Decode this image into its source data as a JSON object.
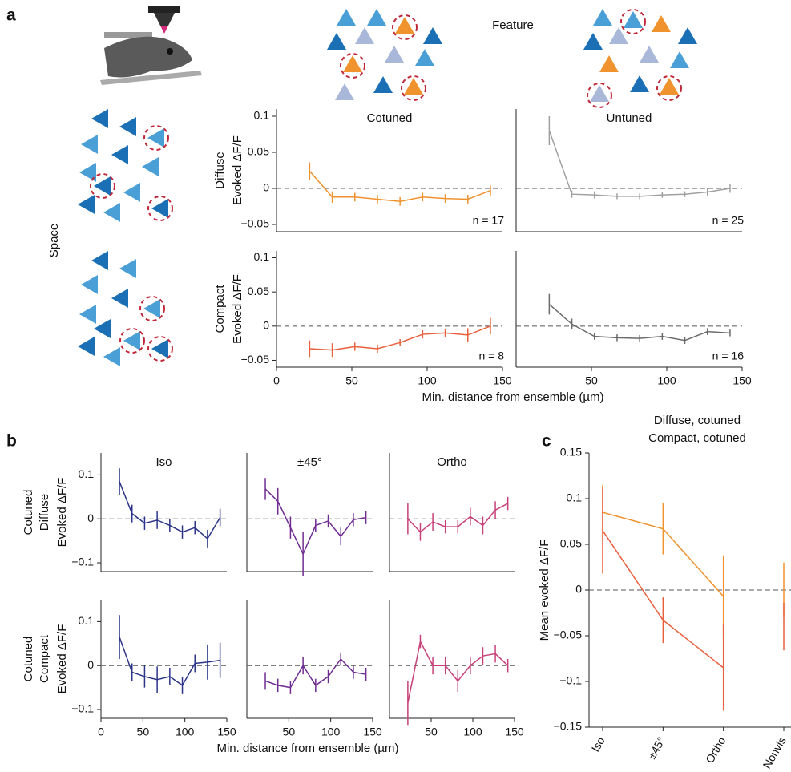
{
  "figure": {
    "panel_labels": [
      "a",
      "b",
      "c"
    ],
    "feature": "Feature",
    "space": "Space"
  },
  "chart_data": [
    {
      "type": "line",
      "title": "Cotuned",
      "title_color": "#f0922e",
      "row_label": "Diffuse",
      "row_label_color": "#a0a0a0",
      "ylabel": "Evoked ΔF/F",
      "annotation": "n = 17",
      "x": [
        22,
        37,
        52,
        67,
        82,
        97,
        112,
        127,
        142
      ],
      "series": [
        {
          "color": "#f0922e",
          "values": [
            0.024,
            -0.012,
            -0.012,
            -0.015,
            -0.018,
            -0.012,
            -0.014,
            -0.015,
            -0.003
          ],
          "errors": [
            0.012,
            0.008,
            0.006,
            0.006,
            0.006,
            0.006,
            0.006,
            0.006,
            0.007
          ]
        }
      ],
      "xlim": [
        0,
        150
      ],
      "ylim": [
        -0.06,
        0.11
      ],
      "yticks": [
        0.1,
        0.05,
        0,
        {
          "value": -0.05,
          "label": "−0.05"
        }
      ],
      "baseline": 0
    },
    {
      "type": "line",
      "title": "Untuned",
      "title_color": "#a0a0a0",
      "annotation": "n = 25",
      "x": [
        22,
        37,
        52,
        67,
        82,
        97,
        112,
        127,
        142
      ],
      "series": [
        {
          "color": "#a0a0a0",
          "values": [
            0.08,
            -0.008,
            -0.009,
            -0.011,
            -0.011,
            -0.009,
            -0.008,
            -0.005,
            0.0
          ],
          "errors": [
            0.02,
            0.005,
            0.005,
            0.004,
            0.004,
            0.004,
            0.004,
            0.005,
            0.006
          ]
        }
      ],
      "xlim": [
        0,
        150
      ],
      "ylim": [
        -0.06,
        0.11
      ],
      "baseline": 0
    },
    {
      "type": "line",
      "row_label": "Compact",
      "row_label_color": "#a0a0a0",
      "ylabel": "Evoked ΔF/F",
      "annotation": "n = 8",
      "x": [
        22,
        37,
        52,
        67,
        82,
        97,
        112,
        127,
        142
      ],
      "series": [
        {
          "color": "#e8603c",
          "values": [
            -0.033,
            -0.035,
            -0.03,
            -0.033,
            -0.024,
            -0.012,
            -0.01,
            -0.013,
            0.0
          ],
          "errors": [
            0.012,
            0.01,
            0.006,
            0.006,
            0.005,
            0.006,
            0.006,
            0.01,
            0.012
          ]
        }
      ],
      "xlim": [
        0,
        150
      ],
      "ylim": [
        -0.06,
        0.11
      ],
      "xticks": [
        0,
        50,
        100,
        150
      ],
      "yticks": [
        0.1,
        0.05,
        0,
        {
          "value": -0.05,
          "label": "−0.05"
        }
      ],
      "baseline": 0
    },
    {
      "type": "line",
      "annotation": "n = 16",
      "xlabel": "Min. distance from ensemble (µm)",
      "x": [
        22,
        37,
        52,
        67,
        82,
        97,
        112,
        127,
        142
      ],
      "series": [
        {
          "color": "#6b6b6b",
          "values": [
            0.032,
            0.003,
            -0.015,
            -0.017,
            -0.018,
            -0.015,
            -0.021,
            -0.008,
            -0.01
          ],
          "errors": [
            0.015,
            0.008,
            0.005,
            0.005,
            0.005,
            0.005,
            0.005,
            0.005,
            0.005
          ]
        }
      ],
      "xlim": [
        0,
        150
      ],
      "ylim": [
        -0.06,
        0.11
      ],
      "xticks": [
        50,
        100,
        150
      ],
      "baseline": 0
    },
    {
      "type": "line",
      "title": "Iso",
      "title_color": "#2b3488",
      "row_label": [
        "Cotuned",
        "Diffuse"
      ],
      "row_label_color": "#f0922e",
      "ylabel": "Evoked ΔF/F",
      "x": [
        22,
        37,
        52,
        67,
        82,
        97,
        112,
        127,
        142
      ],
      "series": [
        {
          "color": "#2b3488",
          "values": [
            0.085,
            0.012,
            -0.01,
            -0.003,
            -0.015,
            -0.03,
            -0.02,
            -0.045,
            0.003
          ],
          "errors": [
            0.03,
            0.02,
            0.015,
            0.02,
            0.015,
            0.015,
            0.015,
            0.02,
            0.02
          ]
        }
      ],
      "xlim": [
        0,
        150
      ],
      "ylim": [
        -0.12,
        0.15
      ],
      "yticks": [
        0.1,
        0,
        {
          "value": -0.1,
          "label": "−0.1"
        }
      ],
      "baseline": 0
    },
    {
      "type": "line",
      "title": "±45°",
      "title_color": "#6f2c91",
      "x": [
        22,
        37,
        52,
        67,
        82,
        97,
        112,
        127,
        142
      ],
      "series": [
        {
          "color": "#6f2c91",
          "values": [
            0.068,
            0.04,
            -0.02,
            -0.08,
            -0.015,
            -0.005,
            -0.04,
            -0.002,
            0.003
          ],
          "errors": [
            0.025,
            0.03,
            0.025,
            0.05,
            0.015,
            0.015,
            0.02,
            0.015,
            0.015
          ]
        }
      ],
      "xlim": [
        0,
        150
      ],
      "ylim": [
        -0.12,
        0.15
      ],
      "baseline": 0
    },
    {
      "type": "line",
      "title": "Ortho",
      "title_color": "#c8407a",
      "x": [
        22,
        37,
        52,
        67,
        82,
        97,
        112,
        127,
        142
      ],
      "series": [
        {
          "color": "#c8407a",
          "values": [
            0.0,
            -0.03,
            -0.007,
            -0.018,
            -0.018,
            0.005,
            -0.015,
            0.02,
            0.035
          ],
          "errors": [
            0.035,
            0.02,
            0.02,
            0.015,
            0.015,
            0.02,
            0.02,
            0.02,
            0.015
          ]
        }
      ],
      "xlim": [
        0,
        150
      ],
      "ylim": [
        -0.12,
        0.15
      ],
      "baseline": 0
    },
    {
      "type": "line",
      "row_label": [
        "Cotuned",
        "Compact"
      ],
      "row_label_color": "#e8603c",
      "ylabel": "Evoked ΔF/F",
      "x": [
        22,
        37,
        52,
        67,
        82,
        97,
        112,
        127,
        142
      ],
      "series": [
        {
          "color": "#2b3488",
          "values": [
            0.065,
            -0.015,
            -0.025,
            -0.032,
            -0.025,
            -0.045,
            0.005,
            0.008,
            0.012
          ],
          "errors": [
            0.05,
            0.02,
            0.025,
            0.03,
            0.02,
            0.02,
            0.02,
            0.04,
            0.04
          ]
        }
      ],
      "xlim": [
        0,
        150
      ],
      "ylim": [
        -0.12,
        0.15
      ],
      "xticks": [
        0,
        50,
        100,
        150
      ],
      "yticks": [
        0.1,
        0,
        {
          "value": -0.1,
          "label": "−0.1"
        }
      ],
      "baseline": 0
    },
    {
      "type": "line",
      "xlabel": "Min. distance from ensemble (µm)",
      "x": [
        22,
        37,
        52,
        67,
        82,
        97,
        112,
        127,
        142
      ],
      "series": [
        {
          "color": "#6f2c91",
          "values": [
            -0.035,
            -0.045,
            -0.05,
            0.0,
            -0.045,
            -0.025,
            0.015,
            -0.015,
            -0.02
          ],
          "errors": [
            0.02,
            0.015,
            0.015,
            0.02,
            0.015,
            0.015,
            0.015,
            0.015,
            0.015
          ]
        }
      ],
      "xlim": [
        0,
        150
      ],
      "ylim": [
        -0.12,
        0.15
      ],
      "xticks": [
        50,
        100,
        150
      ],
      "baseline": 0
    },
    {
      "type": "line",
      "x": [
        22,
        37,
        52,
        67,
        82,
        97,
        112,
        127,
        142
      ],
      "series": [
        {
          "color": "#c8407a",
          "values": [
            -0.085,
            0.055,
            0.0,
            0.0,
            -0.035,
            0.0,
            0.022,
            0.027,
            0.0
          ],
          "errors": [
            0.05,
            0.015,
            0.02,
            0.02,
            0.025,
            0.02,
            0.02,
            0.02,
            0.015
          ]
        }
      ],
      "xlim": [
        0,
        150
      ],
      "ylim": [
        -0.12,
        0.15
      ],
      "xticks": [
        50,
        100,
        150
      ],
      "baseline": 0
    },
    {
      "type": "line",
      "ylabel": "Mean evoked ΔF/F",
      "legend": "top",
      "categories": [
        "Iso",
        "±45°",
        "Ortho",
        "Nonvis"
      ],
      "category_colors": [
        "#2b3488",
        "#6f2c91",
        "#c8407a",
        "#000000"
      ],
      "series": [
        {
          "name": "Diffuse, cotuned",
          "color": "#f0922e",
          "values": [
            0.085,
            0.067,
            -0.007,
            0.0
          ],
          "errors": [
            0.03,
            0.028,
            0.045,
            0.03
          ]
        },
        {
          "name": "Compact, cotuned",
          "color": "#e8603c",
          "values": [
            0.065,
            -0.033,
            -0.085,
            -0.04
          ],
          "errors": [
            0.047,
            0.025,
            0.047,
            0.026
          ]
        }
      ],
      "ylim": [
        -0.15,
        0.15
      ],
      "yticks": [
        0.15,
        0.1,
        0.05,
        0,
        {
          "value": -0.05,
          "label": "−0.05"
        },
        {
          "value": -0.1,
          "label": "−0.1"
        },
        {
          "value": -0.15,
          "label": "−0.15"
        }
      ],
      "baseline": 0
    }
  ]
}
